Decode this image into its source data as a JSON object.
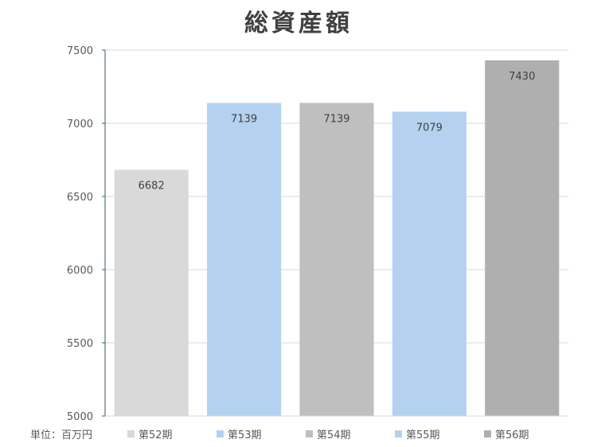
{
  "chart_data": {
    "type": "bar",
    "title": "総資産額",
    "unit_label": "単位：百万円",
    "categories": [
      "第52期",
      "第53期",
      "第54期",
      "第55期",
      "第56期"
    ],
    "values": [
      6682,
      7139,
      7139,
      7079,
      7430
    ],
    "colors": [
      "#d9d9d9",
      "#b4d2f0",
      "#bfbfbf",
      "#b4d2f0",
      "#afafaf"
    ],
    "ylim": [
      5000,
      7500
    ],
    "yticks": [
      5000,
      5500,
      6000,
      6500,
      7000,
      7500
    ],
    "grid": true,
    "legend_position": "bottom",
    "xlabel": "",
    "ylabel": ""
  }
}
